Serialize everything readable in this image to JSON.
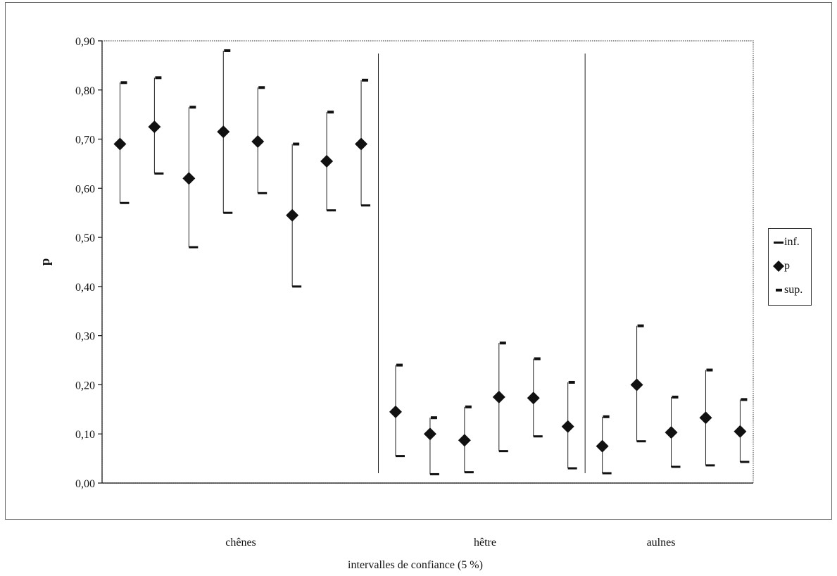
{
  "chart_data": {
    "type": "scatter",
    "title": "",
    "xlabel": "intervalles de confiance (5 %)",
    "ylabel": "p",
    "ylim": [
      0,
      0.9
    ],
    "yticks": [
      "0,00",
      "0,10",
      "0,20",
      "0,30",
      "0,40",
      "0,50",
      "0,60",
      "0,70",
      "0,80",
      "0,90"
    ],
    "grid": false,
    "legend_position": "right",
    "groups": [
      {
        "label": "chênes",
        "count": 8
      },
      {
        "label": "hêtre",
        "count": 6
      },
      {
        "label": "aulnes",
        "count": 5
      }
    ],
    "series": [
      {
        "name": "inf.",
        "values": [
          0.57,
          0.63,
          0.48,
          0.55,
          0.59,
          0.4,
          0.555,
          0.565,
          0.055,
          0.018,
          0.022,
          0.065,
          0.095,
          0.03,
          0.02,
          0.085,
          0.033,
          0.036,
          0.043
        ]
      },
      {
        "name": "p",
        "values": [
          0.69,
          0.725,
          0.62,
          0.715,
          0.695,
          0.545,
          0.655,
          0.69,
          0.145,
          0.1,
          0.087,
          0.175,
          0.173,
          0.115,
          0.075,
          0.2,
          0.103,
          0.133,
          0.105
        ]
      },
      {
        "name": "sup.",
        "values": [
          0.815,
          0.825,
          0.765,
          0.88,
          0.805,
          0.69,
          0.755,
          0.82,
          0.24,
          0.133,
          0.155,
          0.285,
          0.253,
          0.205,
          0.135,
          0.32,
          0.175,
          0.23,
          0.17
        ]
      }
    ]
  }
}
